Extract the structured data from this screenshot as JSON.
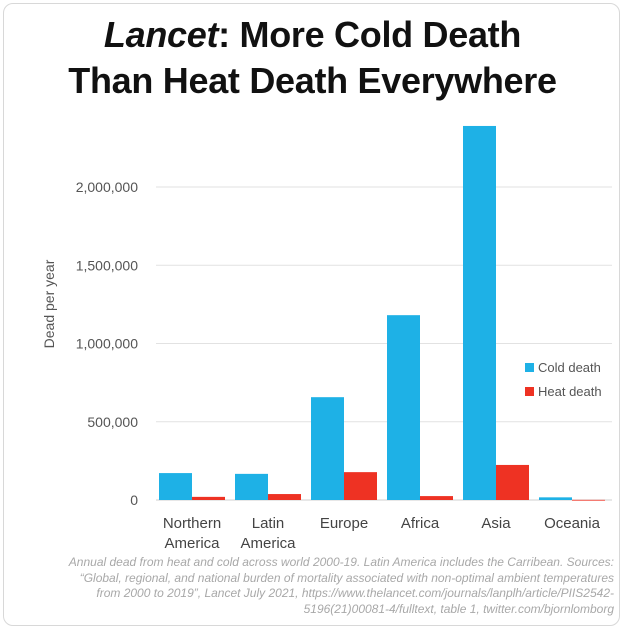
{
  "chart_data": {
    "type": "bar",
    "title_lead": "Lancet",
    "title_rest": ": More Cold Death",
    "title_line2": "Than Heat Death Everywhere",
    "ylabel": "Dead per year",
    "xlabel": "",
    "ylim": [
      0,
      2400000
    ],
    "yticks": [
      0,
      500000,
      1000000,
      1500000,
      2000000
    ],
    "ytick_labels": [
      "0",
      "500,000",
      "1,000,000",
      "1,500,000",
      "2,000,000"
    ],
    "grid": true,
    "legend_position": "right",
    "categories": [
      [
        "Northern",
        "America"
      ],
      [
        "Latin",
        "America"
      ],
      [
        "Europe"
      ],
      [
        "Africa"
      ],
      [
        "Asia"
      ],
      [
        "Oceania"
      ]
    ],
    "series": [
      {
        "name": "Cold death",
        "color": "#1eb1e6",
        "values": [
          172000,
          167000,
          657000,
          1181000,
          2390000,
          17000
        ]
      },
      {
        "name": "Heat death",
        "color": "#ee3223",
        "values": [
          20000,
          38000,
          178000,
          25000,
          224000,
          1000
        ]
      }
    ]
  },
  "caption": [
    "Annual dead from heat and cold across world 2000-19. Latin America includes the Carribean. Sources:",
    "“Global, regional, and national burden of mortality associated with non-optimal ambient temperatures",
    "from 2000 to 2019”, Lancet July 2021, https://www.thelancet.com/journals/lanplh/article/PIIS2542-",
    "5196(21)00081-4/fulltext, table 1, twitter.com/bjornlomborg"
  ]
}
